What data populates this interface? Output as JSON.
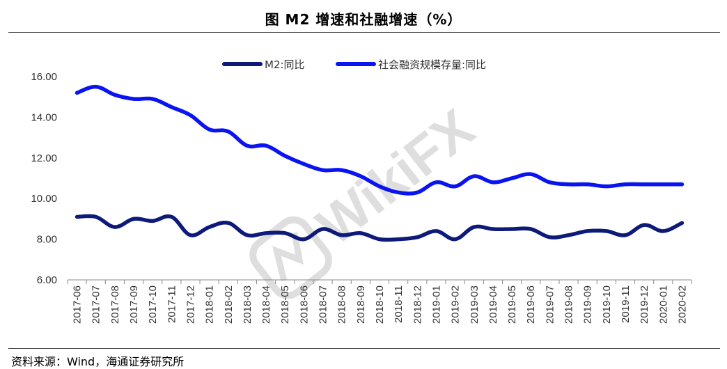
{
  "title": "图  M2 增速和社融增速（%）",
  "source": "资料来源：Wind，海通证券研究所",
  "watermark": "WikiFX",
  "chart_data": {
    "type": "line",
    "title": "图  M2 增速和社融增速（%）",
    "xlabel": "",
    "ylabel": "",
    "ylim": [
      6,
      16
    ],
    "yticks": [
      "6.00",
      "8.00",
      "10.00",
      "12.00",
      "14.00",
      "16.00"
    ],
    "grid": false,
    "legend_position": "top",
    "categories": [
      "2017-06",
      "2017-07",
      "2017-08",
      "2017-09",
      "2017-10",
      "2017-11",
      "2017-12",
      "2018-01",
      "2018-02",
      "2018-03",
      "2018-04",
      "2018-05",
      "2018-06",
      "2018-07",
      "2018-08",
      "2018-09",
      "2018-10",
      "2018-11",
      "2018-12",
      "2019-01",
      "2019-02",
      "2019-03",
      "2019-04",
      "2019-05",
      "2019-06",
      "2019-07",
      "2019-08",
      "2019-09",
      "2019-10",
      "2019-11",
      "2019-12",
      "2020-01",
      "2020-02"
    ],
    "series": [
      {
        "name": "M2:同比",
        "color": "#0d1a7a",
        "values": [
          9.1,
          9.1,
          8.6,
          9.0,
          8.9,
          9.1,
          8.2,
          8.6,
          8.8,
          8.2,
          8.3,
          8.3,
          8.0,
          8.5,
          8.2,
          8.3,
          8.0,
          8.0,
          8.1,
          8.4,
          8.0,
          8.6,
          8.5,
          8.5,
          8.5,
          8.1,
          8.2,
          8.4,
          8.4,
          8.2,
          8.7,
          8.4,
          8.8
        ]
      },
      {
        "name": "社会融资规模存量:同比",
        "color": "#0a14f0",
        "values": [
          15.2,
          15.5,
          15.1,
          14.9,
          14.9,
          14.5,
          14.1,
          13.4,
          13.3,
          12.6,
          12.6,
          12.1,
          11.7,
          11.4,
          11.4,
          11.1,
          10.6,
          10.3,
          10.3,
          10.8,
          10.6,
          11.1,
          10.8,
          11.0,
          11.2,
          10.8,
          10.7,
          10.7,
          10.6,
          10.7,
          10.7,
          10.7,
          10.7
        ]
      }
    ]
  }
}
